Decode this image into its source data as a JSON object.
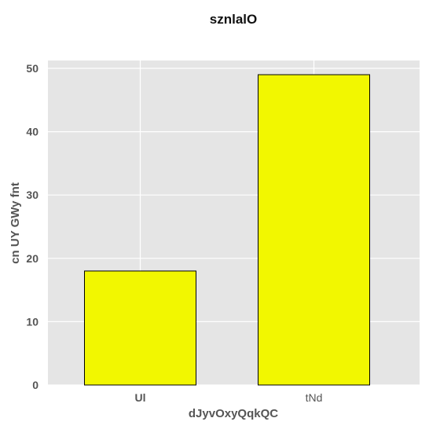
{
  "chart_data": {
    "type": "bar",
    "title": "sznlalO",
    "xlabel": "dJyvOxyQqkQC",
    "ylabel": "cn UY GWy fnt",
    "categories": [
      "Ul",
      "tNd"
    ],
    "values": [
      18,
      49
    ],
    "ylim": [
      0,
      50
    ],
    "yticks": [
      0,
      10,
      20,
      30,
      40,
      50
    ],
    "grid": true,
    "legend": "none",
    "colors": {
      "bar_fill": "#f2f700",
      "bar_edge": "#000000",
      "plot_background": "#e5e5e5",
      "grid": "#ffffff"
    }
  }
}
